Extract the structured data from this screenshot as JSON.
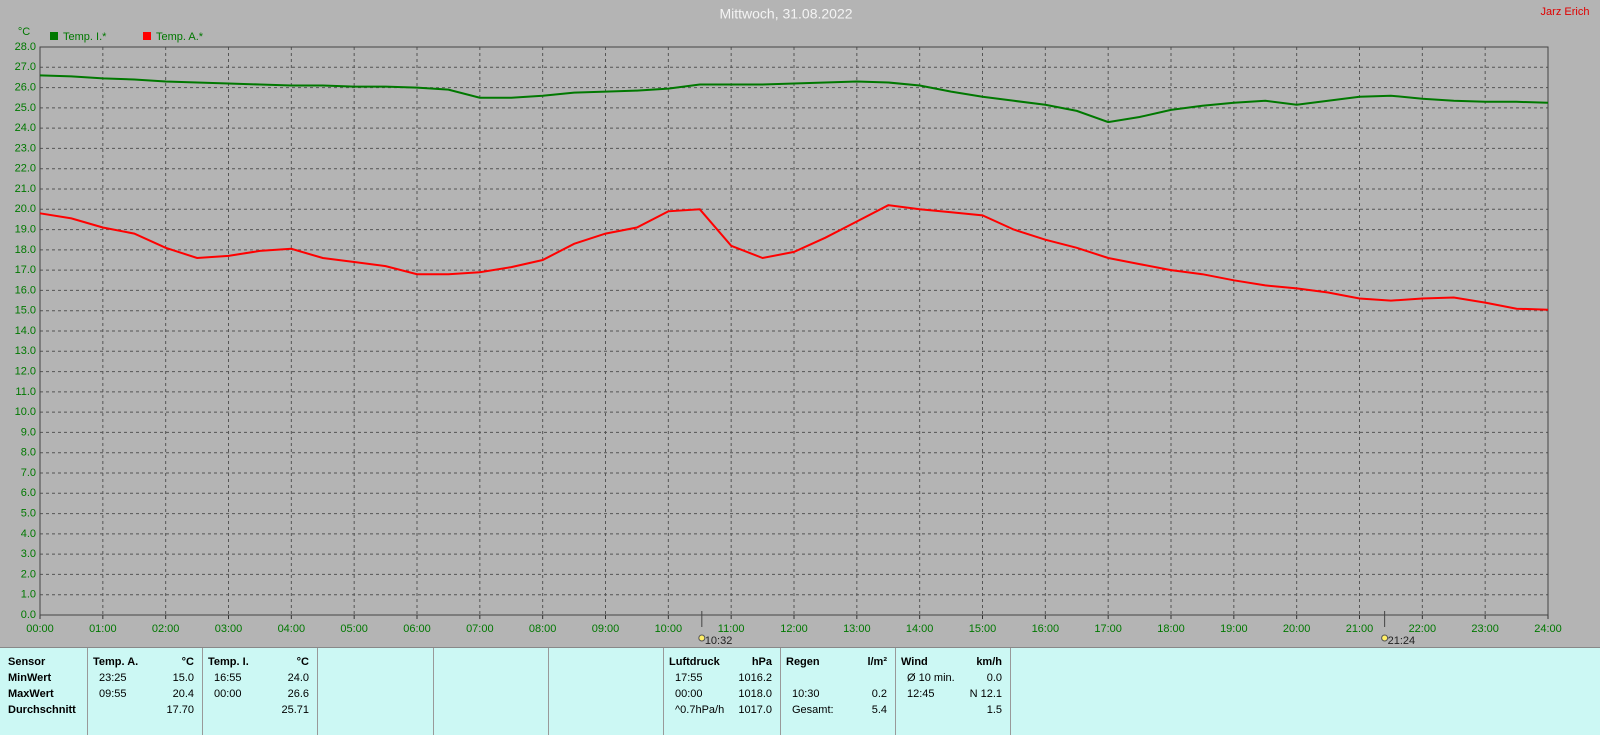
{
  "chart_data": {
    "type": "line",
    "title": "Mittwoch, 31.08.2022",
    "author": "Jarz Erich",
    "y_unit": "°C",
    "legend": "top-left",
    "grid": true,
    "x": [
      0,
      0.5,
      1,
      1.5,
      2,
      2.5,
      3,
      3.5,
      4,
      4.5,
      5,
      5.5,
      6,
      6.5,
      7,
      7.5,
      8,
      8.5,
      9,
      9.5,
      10,
      10.5,
      11,
      11.5,
      12,
      12.5,
      13,
      13.5,
      14,
      14.5,
      15,
      15.5,
      16,
      16.5,
      17,
      17.5,
      18,
      18.5,
      19,
      19.5,
      20,
      20.5,
      21,
      21.5,
      22,
      22.5,
      23,
      23.5,
      24
    ],
    "series": [
      {
        "name": "Temp. I.*",
        "color": "#007800",
        "values": [
          26.6,
          26.55,
          26.45,
          26.4,
          26.3,
          26.25,
          26.2,
          26.15,
          26.1,
          26.1,
          26.05,
          26.05,
          26.0,
          25.9,
          25.5,
          25.5,
          25.6,
          25.75,
          25.8,
          25.85,
          25.95,
          26.15,
          26.15,
          26.15,
          26.2,
          26.25,
          26.3,
          26.25,
          26.1,
          25.8,
          25.55,
          25.35,
          25.15,
          24.85,
          24.3,
          24.55,
          24.9,
          25.1,
          25.25,
          25.35,
          25.15,
          25.35,
          25.55,
          25.6,
          25.45,
          25.35,
          25.3,
          25.3,
          25.25
        ]
      },
      {
        "name": "Temp. A.*",
        "color": "#ff0000",
        "values": [
          19.8,
          19.55,
          19.1,
          18.8,
          18.1,
          17.6,
          17.7,
          17.95,
          18.05,
          17.6,
          17.4,
          17.2,
          16.8,
          16.8,
          16.9,
          17.15,
          17.5,
          18.3,
          18.8,
          19.1,
          19.9,
          20.0,
          18.2,
          17.6,
          17.9,
          18.6,
          19.4,
          20.2,
          20.0,
          19.85,
          19.7,
          19.0,
          18.5,
          18.1,
          17.6,
          17.3,
          17.0,
          16.8,
          16.5,
          16.25,
          16.1,
          15.9,
          15.6,
          15.5,
          15.6,
          15.65,
          15.4,
          15.1,
          15.05
        ]
      }
    ],
    "xlim": [
      0,
      24
    ],
    "xticks": [
      {
        "value": 0,
        "label": "00:00"
      },
      {
        "value": 1,
        "label": "01:00"
      },
      {
        "value": 2,
        "label": "02:00"
      },
      {
        "value": 3,
        "label": "03:00"
      },
      {
        "value": 4,
        "label": "04:00"
      },
      {
        "value": 5,
        "label": "05:00"
      },
      {
        "value": 6,
        "label": "06:00"
      },
      {
        "value": 7,
        "label": "07:00"
      },
      {
        "value": 8,
        "label": "08:00"
      },
      {
        "value": 9,
        "label": "09:00"
      },
      {
        "value": 10,
        "label": "10:00"
      },
      {
        "value": 11,
        "label": "11:00"
      },
      {
        "value": 12,
        "label": "12:00"
      },
      {
        "value": 13,
        "label": "13:00"
      },
      {
        "value": 14,
        "label": "14:00"
      },
      {
        "value": 15,
        "label": "15:00"
      },
      {
        "value": 16,
        "label": "16:00"
      },
      {
        "value": 17,
        "label": "17:00"
      },
      {
        "value": 18,
        "label": "18:00"
      },
      {
        "value": 19,
        "label": "19:00"
      },
      {
        "value": 20,
        "label": "20:00"
      },
      {
        "value": 21,
        "label": "21:00"
      },
      {
        "value": 22,
        "label": "22:00"
      },
      {
        "value": 23,
        "label": "23:00"
      },
      {
        "value": 24,
        "label": "24:00"
      }
    ],
    "ylim": [
      0,
      28
    ],
    "yticks": [
      {
        "value": 0,
        "label": "0.0"
      },
      {
        "value": 1,
        "label": "1.0"
      },
      {
        "value": 2,
        "label": "2.0"
      },
      {
        "value": 3,
        "label": "3.0"
      },
      {
        "value": 4,
        "label": "4.0"
      },
      {
        "value": 5,
        "label": "5.0"
      },
      {
        "value": 6,
        "label": "6.0"
      },
      {
        "value": 7,
        "label": "7.0"
      },
      {
        "value": 8,
        "label": "8.0"
      },
      {
        "value": 9,
        "label": "9.0"
      },
      {
        "value": 10,
        "label": "10.0"
      },
      {
        "value": 11,
        "label": "11.0"
      },
      {
        "value": 12,
        "label": "12.0"
      },
      {
        "value": 13,
        "label": "13.0"
      },
      {
        "value": 14,
        "label": "14.0"
      },
      {
        "value": 15,
        "label": "15.0"
      },
      {
        "value": 16,
        "label": "16.0"
      },
      {
        "value": 17,
        "label": "17.0"
      },
      {
        "value": 18,
        "label": "18.0"
      },
      {
        "value": 19,
        "label": "19.0"
      },
      {
        "value": 20,
        "label": "20.0"
      },
      {
        "value": 21,
        "label": "21.0"
      },
      {
        "value": 22,
        "label": "22.0"
      },
      {
        "value": 23,
        "label": "23.0"
      },
      {
        "value": 24,
        "label": "24.0"
      },
      {
        "value": 25,
        "label": "25.0"
      },
      {
        "value": 26,
        "label": "26.0"
      },
      {
        "value": 27,
        "label": "27.0"
      },
      {
        "value": 28,
        "label": "28.0"
      }
    ],
    "markers": [
      {
        "x": 10.533,
        "label": "10:32"
      },
      {
        "x": 21.4,
        "label": "21:24"
      }
    ]
  },
  "stats": {
    "sensor_labels": [
      "Sensor",
      "MinWert",
      "MaxWert",
      "Durchschnitt"
    ],
    "panels": [
      {
        "header": [
          "Temp. A.",
          "°C"
        ],
        "rows": [
          [
            "23:25",
            "15.0"
          ],
          [
            "09:55",
            "20.4"
          ],
          [
            "17.70"
          ]
        ]
      },
      {
        "header": [
          "Temp. I.",
          "°C"
        ],
        "rows": [
          [
            "16:55",
            "24.0"
          ],
          [
            "00:00",
            "26.6"
          ],
          [
            "25.71"
          ]
        ]
      },
      {
        "header": [
          "Luftdruck",
          "hPa"
        ],
        "rows": [
          [
            "17:55",
            "1016.2"
          ],
          [
            "00:00",
            "1018.0"
          ],
          [
            "^0.7hPa/h",
            "1017.0"
          ]
        ]
      },
      {
        "header": [
          "Regen",
          "l/m²"
        ],
        "rows": [
          null,
          [
            "10:30",
            "0.2"
          ],
          [
            "Gesamt:",
            "5.4"
          ]
        ]
      },
      {
        "header": [
          "Wind",
          "km/h"
        ],
        "rows": [
          [
            "Ø 10 min.",
            "0.0"
          ],
          [
            "12:45",
            "N 12.1"
          ],
          [
            "1.5"
          ]
        ]
      }
    ]
  }
}
